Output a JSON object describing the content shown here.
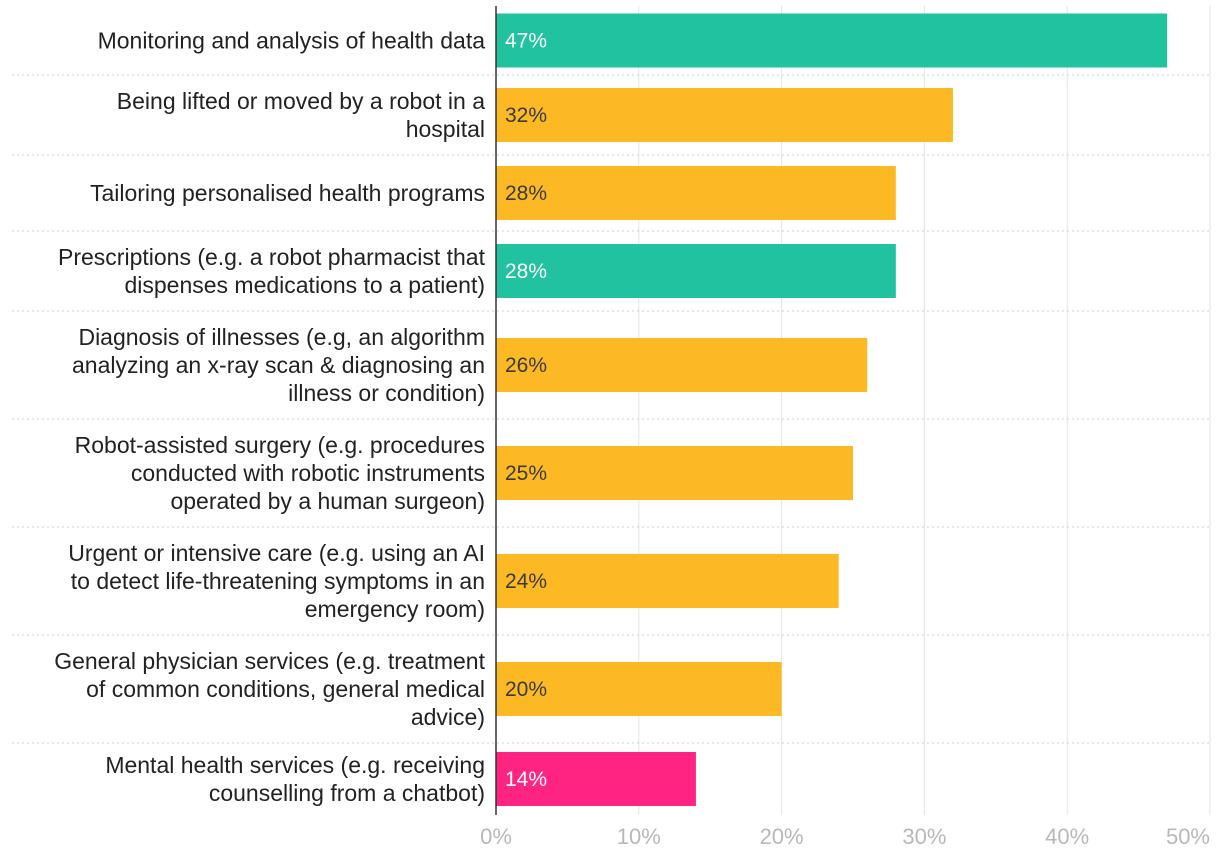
{
  "chart_data": {
    "type": "bar",
    "orientation": "horizontal",
    "categories": [
      "Monitoring and analysis of health data",
      "Being lifted or moved by a robot in a hospital",
      "Tailoring personalised health programs",
      "Prescriptions (e.g. a robot pharmacist that dispenses medications to a patient)",
      "Diagnosis of illnesses (e.g, an algorithm analyzing an x-ray scan & diagnosing an illness or condition)",
      "Robot-assisted surgery (e.g. procedures conducted with robotic instruments operated by a human surgeon)",
      "Urgent or intensive care (e.g. using an AI to detect life-threatening symptoms in an emergency room)",
      "General physician services (e.g. treatment of common conditions, general medical advice)",
      "Mental health services (e.g. receiving counselling from a chatbot)"
    ],
    "category_lines": [
      [
        "Monitoring and analysis of health data"
      ],
      [
        "Being lifted or moved by a robot in a",
        "hospital"
      ],
      [
        "Tailoring personalised health programs"
      ],
      [
        "Prescriptions (e.g. a robot pharmacist that",
        "dispenses medications to a patient)"
      ],
      [
        "Diagnosis of illnesses (e.g, an algorithm",
        "analyzing an x-ray scan & diagnosing an",
        "illness or condition)"
      ],
      [
        "Robot-assisted surgery (e.g. procedures",
        "conducted with robotic instruments",
        "operated by a human surgeon)"
      ],
      [
        "Urgent or intensive care (e.g. using an AI",
        "to detect life-threatening symptoms in an",
        "emergency room)"
      ],
      [
        "General physician services (e.g. treatment",
        "of common conditions, general medical",
        "advice)"
      ],
      [
        "Mental health services (e.g. receiving",
        "counselling from a chatbot)"
      ]
    ],
    "values": [
      47,
      32,
      28,
      28,
      26,
      25,
      24,
      20,
      14
    ],
    "value_labels": [
      "47%",
      "32%",
      "28%",
      "28%",
      "26%",
      "25%",
      "24%",
      "20%",
      "14%"
    ],
    "bar_colors": [
      "#20c29f",
      "#fdb923",
      "#fdb923",
      "#20c29f",
      "#fdb923",
      "#fdb923",
      "#fdb923",
      "#fdb923",
      "#ff2382"
    ],
    "label_colors": [
      "#ffffff",
      "#3a3a3a",
      "#3a3a3a",
      "#ffffff",
      "#3a3a3a",
      "#3a3a3a",
      "#3a3a3a",
      "#3a3a3a",
      "#ffffff"
    ],
    "xlim": [
      0,
      50
    ],
    "xticks": [
      0,
      10,
      20,
      30,
      40,
      50
    ],
    "xtick_labels": [
      "0%",
      "10%",
      "20%",
      "30%",
      "40%",
      "50%"
    ],
    "grid": true,
    "legend": "none",
    "title": "",
    "xlabel": "",
    "ylabel": ""
  }
}
